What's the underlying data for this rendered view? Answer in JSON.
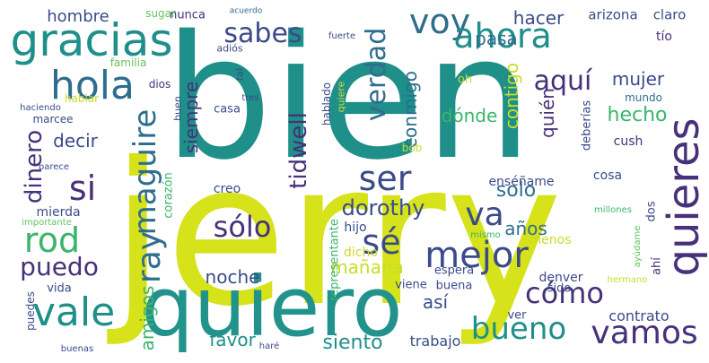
{
  "colors": {
    "background": "#ffffff",
    "yellow": "#d6e21a",
    "teal": "#1f8f8a",
    "green": "#3bb56b",
    "blue": "#2f6d8e",
    "purple": "#46317a",
    "dark_purple": "#440f55"
  },
  "words": {
    "jerry": "jerry",
    "bien": "bien",
    "quiero": "quiero",
    "gracias": "gracias",
    "hola": "hola",
    "voy": "voy",
    "ahora": "ahora",
    "sabes": "sabes",
    "verdad": "verdad",
    "hombre": "hombre",
    "maguire": "maguire",
    "tidwell": "tidwell",
    "si": "si",
    "rod": "rod",
    "dinero": "dinero",
    "puedo": "puedo",
    "vale": "vale",
    "ray": "ray",
    "solo_tilde": "sólo",
    "ser": "ser",
    "mejor": "mejor",
    "se": "sé",
    "va": "va",
    "quieres": "quieres",
    "vamos": "vamos",
    "bueno": "bueno",
    "como": "cómo",
    "aqui": "aquí",
    "hacer": "hacer",
    "pasa": "pasa",
    "mujer": "mujer",
    "conmigo": "conmigo",
    "contigo": "contigo",
    "donde": "dónde",
    "quien": "quién",
    "hecho": "hecho",
    "siempre": "siempre",
    "decir": "decir",
    "dorothy": "dorothy",
    "solo": "solo",
    "anos": "años",
    "noche": "noche",
    "manana": "mañana",
    "amigos": "amigos",
    "favor": "favor",
    "siento": "siento",
    "asi": "así",
    "trabajo": "trabajo",
    "contrato": "contrato",
    "arizona": "arizona",
    "claro": "claro",
    "tio": "tío",
    "mundo": "mundo",
    "deberias": "deberías",
    "cush": "cush",
    "cosa": "cosa",
    "ensename": "enséñame",
    "dos": "dos",
    "millones": "millones",
    "menos": "menos",
    "ahi": "ahí",
    "denver": "denver",
    "sido": "sido",
    "ver": "ver",
    "buena": "buena",
    "espera": "espera",
    "viene": "viene",
    "dicho": "dicho",
    "hijo": "hijo",
    "mismo": "mismo",
    "ayudame": "ayúdame",
    "hermano": "hermano",
    "representante": "representante",
    "corazon": "corazón",
    "creo": "creo",
    "bob": "bob",
    "oh": "oh",
    "quiere": "quiere",
    "hablado": "hablado",
    "tres": "tres",
    "tal": "tal",
    "buen": "buen",
    "casa": "casa",
    "nunca": "nunca",
    "acuerdo": "acuerdo",
    "fuerte": "fuerte",
    "adios": "adiós",
    "sugar": "sugar",
    "familia": "familia",
    "dios": "dios",
    "hablar": "hablar",
    "haciendo": "haciendo",
    "marcee": "marcee",
    "parece": "parece",
    "mierda": "mierda",
    "importante": "importante",
    "vida": "vida",
    "puedes": "puedes",
    "buenas": "buenas",
    "hare": "haré"
  }
}
